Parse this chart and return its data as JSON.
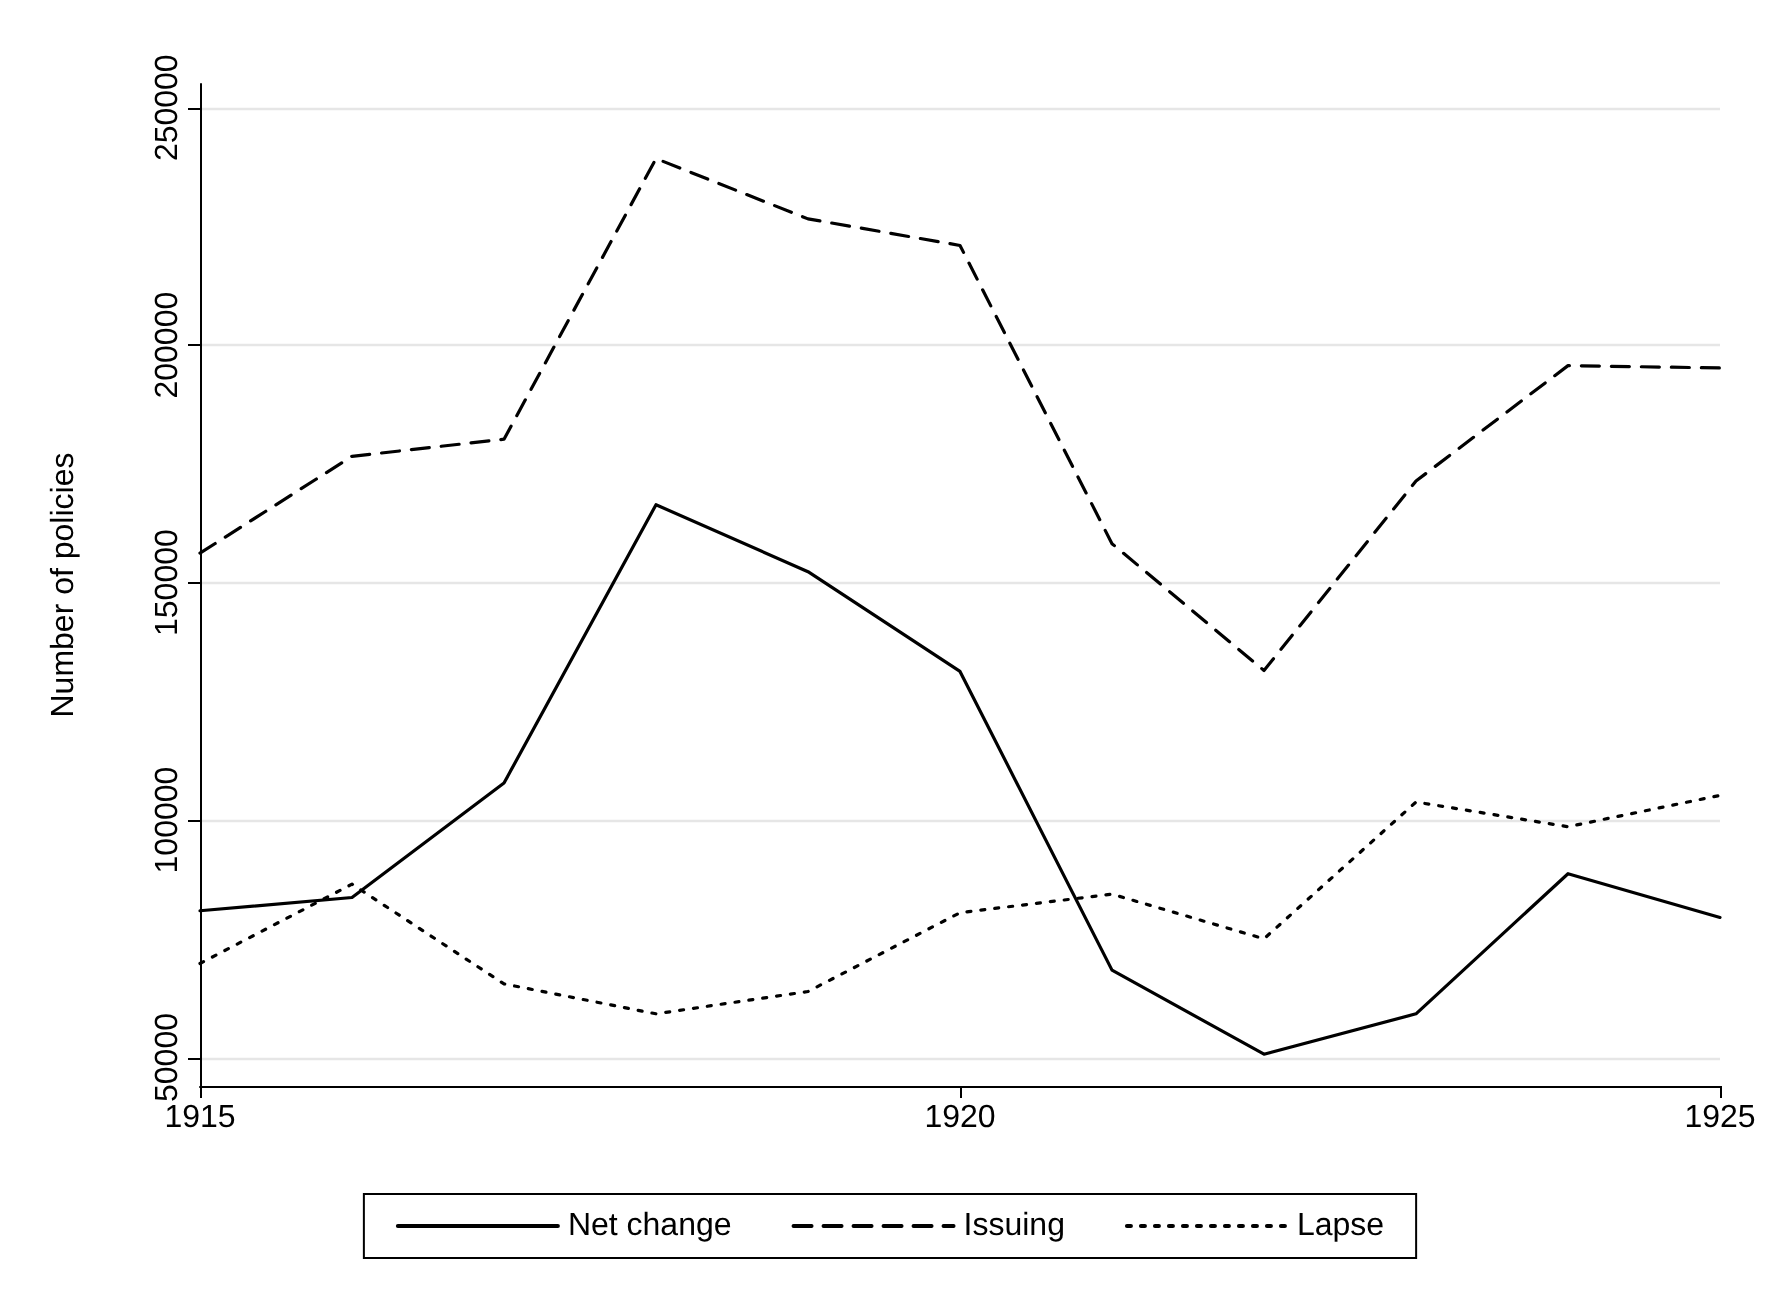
{
  "chart_data": {
    "type": "line",
    "ylabel": "Number of policies",
    "x": [
      1915,
      1916,
      1917,
      1918,
      1919,
      1920,
      1921,
      1922,
      1923,
      1924,
      1925
    ],
    "series": [
      {
        "name": "Net change",
        "color": "#000000",
        "line_style": "solid",
        "values": [
          80900,
          83700,
          107800,
          166400,
          152300,
          131300,
          68400,
          50700,
          59200,
          88700,
          79500
        ]
      },
      {
        "name": "Issuing",
        "color": "#000000",
        "line_style": "dashed",
        "values": [
          156200,
          176600,
          180200,
          239300,
          226600,
          221000,
          158200,
          131500,
          171400,
          195700,
          195200
        ]
      },
      {
        "name": "Lapse",
        "color": "#000000",
        "line_style": "dotted",
        "values": [
          69800,
          86500,
          65500,
          59200,
          63900,
          80500,
          84400,
          75000,
          103800,
          98600,
          105200
        ]
      }
    ],
    "xlim": [
      1915,
      1925
    ],
    "xticks": [
      1915,
      1920,
      1925
    ],
    "ylim": [
      44000,
      255000
    ],
    "yticks": [
      50000,
      100000,
      150000,
      200000,
      250000
    ],
    "grid": "y",
    "legend": "bottom",
    "marker": "none"
  }
}
